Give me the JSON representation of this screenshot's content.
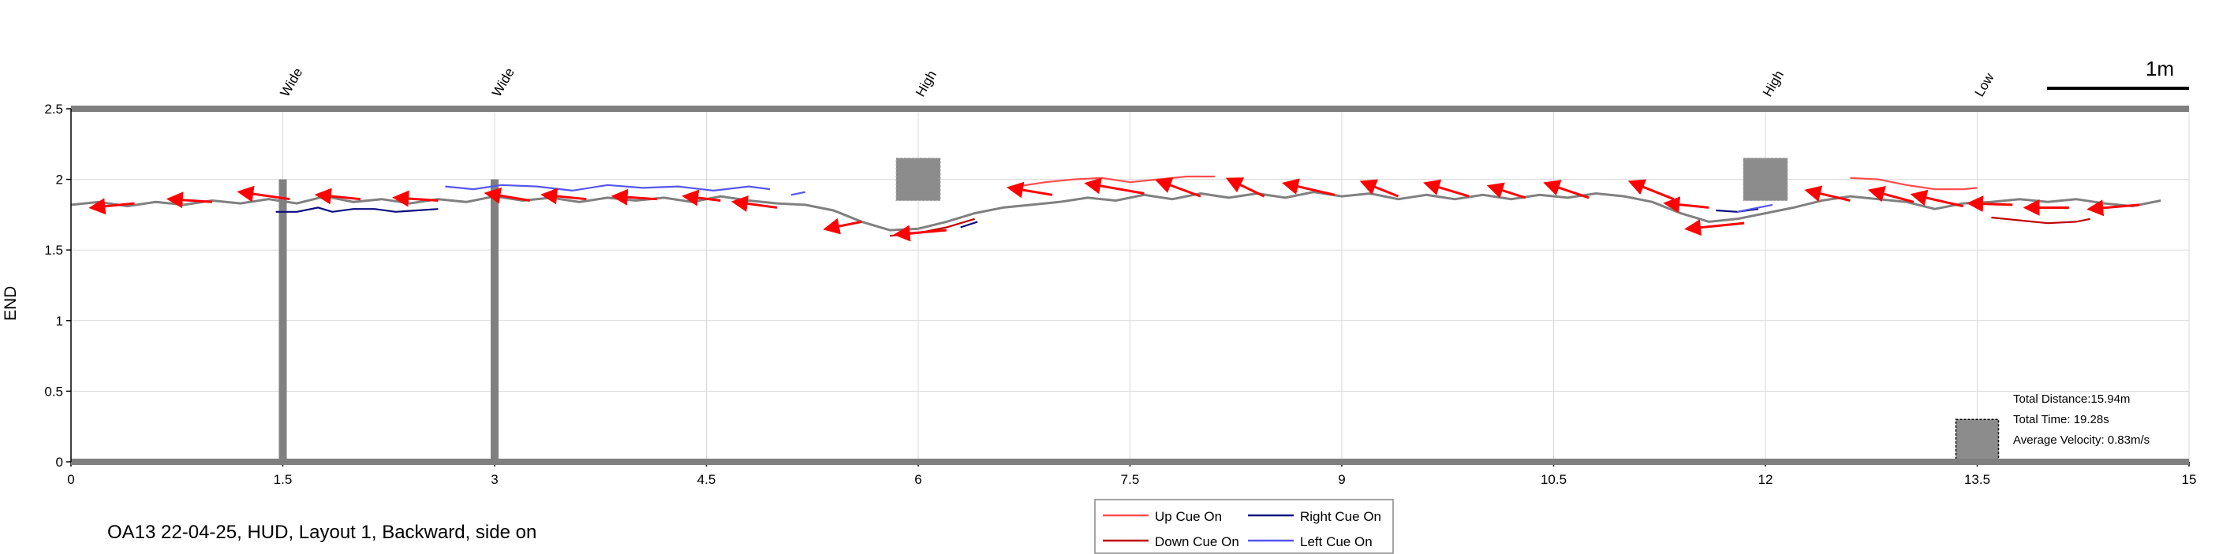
{
  "chart_data": {
    "type": "line",
    "title": "",
    "xlabel": "",
    "ylabel": "END",
    "xlim": [
      0,
      15
    ],
    "ylim": [
      0,
      2.5
    ],
    "grid": true,
    "xticks": [
      "0",
      "1.5",
      "3",
      "4.5",
      "6",
      "7.5",
      "9",
      "10.5",
      "12",
      "13.5",
      "15"
    ],
    "yticks": [
      "0",
      "0.5",
      "1",
      "1.5",
      "2",
      "2.5"
    ],
    "obstacles": [
      {
        "label": "Wide",
        "type": "pole",
        "x": 1.5
      },
      {
        "label": "Wide",
        "type": "pole",
        "x": 3.0
      },
      {
        "label": "High",
        "type": "block",
        "x": 6.0,
        "y": 2.0
      },
      {
        "label": "High",
        "type": "block",
        "x": 12.0,
        "y": 2.0
      },
      {
        "label": "Low",
        "type": "box",
        "x": 13.5,
        "y": 0.15
      }
    ],
    "scale_bar": "1m",
    "stats": {
      "distance": "Total Distance:15.94m",
      "time": "Total Time: 19.28s",
      "velocity": "Average Velocity: 0.83m/s"
    },
    "series": [
      {
        "name": "Up Cue On",
        "color": "#ff4d4d",
        "segments": [
          [
            [
              6.7,
              1.95
            ],
            [
              6.9,
              1.98
            ],
            [
              7.1,
              2.0
            ],
            [
              7.3,
              2.01
            ],
            [
              7.5,
              1.98
            ],
            [
              7.7,
              2.0
            ],
            [
              7.9,
              2.02
            ],
            [
              8.1,
              2.02
            ]
          ],
          [
            [
              12.6,
              2.01
            ],
            [
              12.8,
              2.0
            ],
            [
              13.0,
              1.96
            ],
            [
              13.2,
              1.93
            ],
            [
              13.4,
              1.93
            ],
            [
              13.5,
              1.94
            ]
          ]
        ]
      },
      {
        "name": "Down Cue On",
        "color": "#c00000",
        "segments": [
          [
            [
              5.8,
              1.6
            ],
            [
              6.0,
              1.62
            ],
            [
              6.2,
              1.66
            ],
            [
              6.4,
              1.72
            ]
          ],
          [
            [
              13.6,
              1.73
            ],
            [
              13.8,
              1.71
            ],
            [
              14.0,
              1.69
            ],
            [
              14.2,
              1.7
            ],
            [
              14.3,
              1.72
            ]
          ]
        ]
      },
      {
        "name": "Right Cue On",
        "color": "#0a0a80",
        "segments": [
          [
            [
              1.45,
              1.77
            ],
            [
              1.6,
              1.77
            ],
            [
              1.75,
              1.8
            ],
            [
              1.85,
              1.77
            ],
            [
              2.0,
              1.79
            ],
            [
              2.15,
              1.79
            ],
            [
              2.3,
              1.77
            ],
            [
              2.45,
              1.78
            ],
            [
              2.6,
              1.79
            ]
          ],
          [
            [
              6.3,
              1.66
            ],
            [
              6.42,
              1.7
            ]
          ],
          [
            [
              11.65,
              1.78
            ],
            [
              11.8,
              1.77
            ],
            [
              11.95,
              1.79
            ]
          ]
        ]
      },
      {
        "name": "Left Cue On",
        "color": "#5555ee",
        "segments": [
          [
            [
              2.65,
              1.95
            ],
            [
              2.85,
              1.93
            ],
            [
              3.05,
              1.96
            ],
            [
              3.3,
              1.95
            ],
            [
              3.55,
              1.92
            ],
            [
              3.8,
              1.96
            ],
            [
              4.05,
              1.94
            ],
            [
              4.3,
              1.95
            ],
            [
              4.55,
              1.92
            ],
            [
              4.8,
              1.95
            ],
            [
              4.95,
              1.93
            ]
          ],
          [
            [
              5.1,
              1.89
            ],
            [
              5.2,
              1.91
            ]
          ],
          [
            [
              11.8,
              1.77
            ],
            [
              12.05,
              1.82
            ]
          ]
        ]
      },
      {
        "name": "trajectory",
        "color": "#808080",
        "points": [
          [
            0.0,
            1.82
          ],
          [
            0.2,
            1.84
          ],
          [
            0.4,
            1.81
          ],
          [
            0.6,
            1.84
          ],
          [
            0.8,
            1.82
          ],
          [
            1.0,
            1.85
          ],
          [
            1.2,
            1.83
          ],
          [
            1.4,
            1.86
          ],
          [
            1.6,
            1.83
          ],
          [
            1.8,
            1.88
          ],
          [
            2.0,
            1.84
          ],
          [
            2.2,
            1.86
          ],
          [
            2.4,
            1.83
          ],
          [
            2.6,
            1.86
          ],
          [
            2.8,
            1.84
          ],
          [
            3.0,
            1.88
          ],
          [
            3.2,
            1.85
          ],
          [
            3.4,
            1.87
          ],
          [
            3.6,
            1.84
          ],
          [
            3.8,
            1.87
          ],
          [
            4.0,
            1.85
          ],
          [
            4.2,
            1.87
          ],
          [
            4.4,
            1.84
          ],
          [
            4.6,
            1.88
          ],
          [
            4.8,
            1.85
          ],
          [
            5.0,
            1.83
          ],
          [
            5.2,
            1.82
          ],
          [
            5.4,
            1.78
          ],
          [
            5.6,
            1.7
          ],
          [
            5.8,
            1.64
          ],
          [
            6.0,
            1.65
          ],
          [
            6.2,
            1.7
          ],
          [
            6.4,
            1.76
          ],
          [
            6.6,
            1.8
          ],
          [
            6.8,
            1.82
          ],
          [
            7.0,
            1.84
          ],
          [
            7.2,
            1.87
          ],
          [
            7.4,
            1.85
          ],
          [
            7.6,
            1.89
          ],
          [
            7.8,
            1.86
          ],
          [
            8.0,
            1.9
          ],
          [
            8.2,
            1.87
          ],
          [
            8.4,
            1.9
          ],
          [
            8.6,
            1.87
          ],
          [
            8.8,
            1.91
          ],
          [
            9.0,
            1.88
          ],
          [
            9.2,
            1.9
          ],
          [
            9.4,
            1.86
          ],
          [
            9.6,
            1.89
          ],
          [
            9.8,
            1.86
          ],
          [
            10.0,
            1.89
          ],
          [
            10.2,
            1.86
          ],
          [
            10.4,
            1.89
          ],
          [
            10.6,
            1.87
          ],
          [
            10.8,
            1.9
          ],
          [
            11.0,
            1.88
          ],
          [
            11.2,
            1.84
          ],
          [
            11.4,
            1.76
          ],
          [
            11.6,
            1.7
          ],
          [
            11.8,
            1.72
          ],
          [
            12.0,
            1.76
          ],
          [
            12.2,
            1.8
          ],
          [
            12.4,
            1.85
          ],
          [
            12.6,
            1.88
          ],
          [
            12.8,
            1.86
          ],
          [
            13.0,
            1.84
          ],
          [
            13.2,
            1.79
          ],
          [
            13.4,
            1.83
          ],
          [
            13.6,
            1.84
          ],
          [
            13.8,
            1.86
          ],
          [
            14.0,
            1.84
          ],
          [
            14.2,
            1.86
          ],
          [
            14.4,
            1.83
          ],
          [
            14.6,
            1.81
          ],
          [
            14.8,
            1.85
          ]
        ]
      }
    ],
    "arrows": [
      [
        0.45,
        1.83,
        0.15,
        1.8
      ],
      [
        1.0,
        1.84,
        0.7,
        1.86
      ],
      [
        1.55,
        1.86,
        1.2,
        1.91
      ],
      [
        2.05,
        1.86,
        1.75,
        1.89
      ],
      [
        2.6,
        1.85,
        2.3,
        1.87
      ],
      [
        3.25,
        1.85,
        2.95,
        1.9
      ],
      [
        3.65,
        1.86,
        3.35,
        1.89
      ],
      [
        4.15,
        1.86,
        3.85,
        1.88
      ],
      [
        4.6,
        1.85,
        4.35,
        1.88
      ],
      [
        5.0,
        1.8,
        4.7,
        1.84
      ],
      [
        5.6,
        1.7,
        5.35,
        1.65
      ],
      [
        6.2,
        1.64,
        5.85,
        1.61
      ],
      [
        6.95,
        1.89,
        6.65,
        1.94
      ],
      [
        7.6,
        1.9,
        7.2,
        1.97
      ],
      [
        8.0,
        1.88,
        7.7,
        1.99
      ],
      [
        8.45,
        1.88,
        8.2,
        2.0
      ],
      [
        8.95,
        1.89,
        8.6,
        1.97
      ],
      [
        9.4,
        1.88,
        9.15,
        1.98
      ],
      [
        9.9,
        1.88,
        9.6,
        1.97
      ],
      [
        10.3,
        1.87,
        10.05,
        1.95
      ],
      [
        10.75,
        1.87,
        10.45,
        1.97
      ],
      [
        11.35,
        1.86,
        11.05,
        1.98
      ],
      [
        11.6,
        1.8,
        11.3,
        1.83
      ],
      [
        11.85,
        1.69,
        11.45,
        1.65
      ],
      [
        12.6,
        1.85,
        12.3,
        1.92
      ],
      [
        13.05,
        1.84,
        12.75,
        1.92
      ],
      [
        13.4,
        1.81,
        13.05,
        1.89
      ],
      [
        13.75,
        1.82,
        13.45,
        1.83
      ],
      [
        14.15,
        1.8,
        13.85,
        1.8
      ],
      [
        14.65,
        1.82,
        14.3,
        1.79
      ]
    ]
  },
  "legend": {
    "items": [
      {
        "label": "Up Cue On",
        "color": "#ff4d4d"
      },
      {
        "label": "Right Cue On",
        "color": "#0a0a80"
      },
      {
        "label": "Down Cue On",
        "color": "#c00000"
      },
      {
        "label": "Left Cue On",
        "color": "#5555ee"
      }
    ]
  },
  "caption": "OA13 22-04-25, HUD, Layout 1, Backward, side on"
}
